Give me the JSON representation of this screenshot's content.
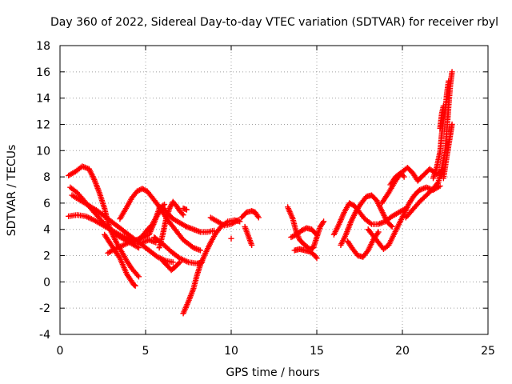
{
  "chart_data": {
    "type": "scatter",
    "title": "Day 360 of 2022, Sidereal Day-to-day VTEC variation (SDTVAR) for receiver rbyl",
    "xlabel": "GPS time / hours",
    "ylabel": "SDTVAR / TECUs",
    "xlim": [
      0,
      25
    ],
    "ylim": [
      -4,
      18
    ],
    "xticks": [
      "0",
      "5",
      "10",
      "15",
      "20",
      "25"
    ],
    "yticks": [
      "-4",
      "-2",
      "0",
      "2",
      "4",
      "6",
      "8",
      "10",
      "12",
      "14",
      "16",
      "18"
    ],
    "grid": true,
    "marker": "+",
    "color": "#ff0000",
    "traces": [
      [
        [
          0.5,
          8.1
        ],
        [
          0.9,
          8.4
        ],
        [
          1.3,
          8.8
        ],
        [
          1.7,
          8.6
        ],
        [
          2.0,
          7.8
        ],
        [
          2.3,
          6.8
        ],
        [
          2.6,
          5.6
        ],
        [
          2.8,
          4.5
        ],
        [
          3.0,
          3.8
        ],
        [
          3.3,
          3.0
        ],
        [
          3.6,
          2.3
        ],
        [
          3.9,
          1.6
        ],
        [
          4.2,
          1.0
        ],
        [
          4.6,
          0.4
        ]
      ],
      [
        [
          0.6,
          7.2
        ],
        [
          1.0,
          6.8
        ],
        [
          1.4,
          6.2
        ],
        [
          1.8,
          5.6
        ],
        [
          2.2,
          5.0
        ],
        [
          2.6,
          4.4
        ],
        [
          3.0,
          3.9
        ],
        [
          3.4,
          3.5
        ],
        [
          3.8,
          3.2
        ],
        [
          4.2,
          2.9
        ],
        [
          4.6,
          2.6
        ]
      ],
      [
        [
          0.5,
          5.0
        ],
        [
          1.0,
          5.1
        ],
        [
          1.5,
          5.0
        ],
        [
          2.0,
          4.7
        ],
        [
          2.4,
          4.4
        ],
        [
          2.8,
          4.1
        ],
        [
          3.2,
          3.8
        ],
        [
          3.6,
          3.5
        ],
        [
          4.0,
          3.3
        ],
        [
          4.4,
          3.1
        ],
        [
          4.8,
          3.0
        ],
        [
          5.2,
          3.2
        ],
        [
          5.6,
          3.0
        ]
      ],
      [
        [
          0.7,
          6.6
        ],
        [
          1.2,
          6.2
        ],
        [
          1.7,
          5.8
        ],
        [
          2.2,
          5.4
        ],
        [
          2.7,
          4.9
        ],
        [
          3.2,
          4.4
        ],
        [
          3.7,
          3.9
        ],
        [
          4.2,
          3.4
        ],
        [
          4.7,
          2.9
        ],
        [
          5.2,
          2.4
        ],
        [
          5.7,
          1.9
        ],
        [
          6.2,
          1.6
        ],
        [
          6.6,
          1.5
        ]
      ],
      [
        [
          2.6,
          3.6
        ],
        [
          2.9,
          3.0
        ],
        [
          3.2,
          2.4
        ],
        [
          3.5,
          1.8
        ],
        [
          3.7,
          1.2
        ],
        [
          3.9,
          0.6
        ],
        [
          4.1,
          0.2
        ],
        [
          4.3,
          -0.2
        ],
        [
          4.4,
          -0.3
        ]
      ],
      [
        [
          2.8,
          2.2
        ],
        [
          3.2,
          2.5
        ],
        [
          3.7,
          2.8
        ],
        [
          4.2,
          3.1
        ],
        [
          4.7,
          3.3
        ],
        [
          5.2,
          3.6
        ],
        [
          5.5,
          4.5
        ],
        [
          5.8,
          5.6
        ],
        [
          6.1,
          5.9
        ]
      ],
      [
        [
          3.5,
          4.8
        ],
        [
          3.9,
          5.7
        ],
        [
          4.2,
          6.4
        ],
        [
          4.5,
          6.9
        ],
        [
          4.8,
          7.1
        ],
        [
          5.1,
          6.9
        ],
        [
          5.4,
          6.4
        ],
        [
          5.7,
          5.9
        ],
        [
          6.0,
          5.3
        ],
        [
          6.3,
          4.7
        ],
        [
          6.6,
          4.2
        ],
        [
          6.9,
          3.7
        ],
        [
          7.2,
          3.2
        ],
        [
          7.5,
          2.9
        ],
        [
          7.8,
          2.6
        ],
        [
          8.2,
          2.4
        ]
      ],
      [
        [
          4.6,
          3.2
        ],
        [
          5.0,
          3.8
        ],
        [
          5.4,
          4.4
        ],
        [
          5.7,
          5.1
        ],
        [
          6.0,
          5.7
        ],
        [
          6.3,
          5.2
        ],
        [
          6.6,
          4.8
        ],
        [
          7.0,
          4.5
        ],
        [
          7.4,
          4.2
        ],
        [
          7.8,
          4.0
        ],
        [
          8.2,
          3.8
        ],
        [
          8.6,
          3.8
        ],
        [
          9.0,
          3.9
        ]
      ],
      [
        [
          5.8,
          2.6
        ],
        [
          6.0,
          3.6
        ],
        [
          6.2,
          4.8
        ],
        [
          6.4,
          5.6
        ],
        [
          6.6,
          6.1
        ],
        [
          6.8,
          5.8
        ],
        [
          7.0,
          5.4
        ],
        [
          7.2,
          5.1
        ]
      ],
      [
        [
          5.5,
          3.4
        ],
        [
          6.0,
          2.9
        ],
        [
          6.5,
          2.3
        ],
        [
          7.0,
          1.8
        ],
        [
          7.5,
          1.5
        ],
        [
          8.0,
          1.4
        ],
        [
          8.3,
          1.5
        ]
      ],
      [
        [
          6.0,
          1.6
        ],
        [
          6.3,
          1.2
        ],
        [
          6.5,
          0.9
        ],
        [
          6.7,
          1.1
        ],
        [
          7.0,
          1.5
        ]
      ],
      [
        [
          7.2,
          5.6
        ],
        [
          7.4,
          5.5
        ]
      ],
      [
        [
          7.2,
          -2.4
        ],
        [
          7.5,
          -1.5
        ],
        [
          7.8,
          -0.5
        ],
        [
          8.0,
          0.5
        ],
        [
          8.2,
          1.3
        ],
        [
          8.5,
          2.2
        ],
        [
          8.8,
          3.0
        ],
        [
          9.1,
          3.7
        ],
        [
          9.4,
          4.2
        ],
        [
          9.8,
          4.6
        ],
        [
          10.2,
          4.7
        ],
        [
          10.5,
          4.6
        ]
      ],
      [
        [
          8.8,
          4.9
        ],
        [
          9.2,
          4.6
        ],
        [
          9.6,
          4.3
        ],
        [
          10.0,
          4.4
        ],
        [
          10.4,
          4.7
        ]
      ],
      [
        [
          10.0,
          3.3
        ]
      ],
      [
        [
          10.6,
          4.9
        ],
        [
          10.9,
          5.3
        ],
        [
          11.2,
          5.4
        ],
        [
          11.4,
          5.3
        ],
        [
          11.6,
          4.9
        ]
      ],
      [
        [
          10.8,
          4.2
        ],
        [
          11.0,
          3.5
        ],
        [
          11.2,
          2.8
        ]
      ],
      [
        [
          13.3,
          5.7
        ],
        [
          13.6,
          4.8
        ],
        [
          13.8,
          3.8
        ],
        [
          14.0,
          3.2
        ],
        [
          14.3,
          2.8
        ],
        [
          14.6,
          2.5
        ],
        [
          14.8,
          2.6
        ],
        [
          15.0,
          3.4
        ],
        [
          15.2,
          4.2
        ],
        [
          15.4,
          4.6
        ]
      ],
      [
        [
          13.5,
          3.4
        ],
        [
          13.8,
          3.6
        ],
        [
          14.1,
          3.9
        ],
        [
          14.4,
          4.1
        ],
        [
          14.7,
          4.0
        ],
        [
          15.0,
          3.6
        ]
      ],
      [
        [
          13.7,
          2.4
        ],
        [
          14.0,
          2.5
        ],
        [
          14.3,
          2.4
        ],
        [
          14.6,
          2.3
        ],
        [
          14.9,
          2.0
        ],
        [
          15.0,
          1.8
        ]
      ],
      [
        [
          16.0,
          3.6
        ],
        [
          16.3,
          4.4
        ],
        [
          16.6,
          5.3
        ],
        [
          16.9,
          6.0
        ],
        [
          17.2,
          5.8
        ],
        [
          17.5,
          5.3
        ],
        [
          17.8,
          4.8
        ],
        [
          18.2,
          4.4
        ],
        [
          18.6,
          4.4
        ],
        [
          19.0,
          4.6
        ],
        [
          19.4,
          5.0
        ],
        [
          19.8,
          5.3
        ],
        [
          20.2,
          5.6
        ]
      ],
      [
        [
          16.4,
          2.8
        ],
        [
          16.7,
          3.6
        ],
        [
          17.0,
          4.6
        ],
        [
          17.3,
          5.4
        ],
        [
          17.6,
          6.0
        ],
        [
          17.9,
          6.5
        ],
        [
          18.2,
          6.6
        ],
        [
          18.5,
          6.2
        ],
        [
          18.8,
          5.4
        ],
        [
          19.1,
          4.6
        ],
        [
          19.4,
          4.2
        ]
      ],
      [
        [
          16.8,
          3.1
        ],
        [
          17.1,
          2.5
        ],
        [
          17.4,
          2.0
        ],
        [
          17.7,
          1.9
        ],
        [
          18.0,
          2.4
        ],
        [
          18.3,
          3.2
        ],
        [
          18.6,
          3.8
        ]
      ],
      [
        [
          18.0,
          4.0
        ],
        [
          18.3,
          3.5
        ],
        [
          18.6,
          3.0
        ],
        [
          18.9,
          2.5
        ],
        [
          19.2,
          2.8
        ],
        [
          19.5,
          3.6
        ],
        [
          19.8,
          4.4
        ],
        [
          20.1,
          5.2
        ],
        [
          20.4,
          6.0
        ],
        [
          20.7,
          6.6
        ],
        [
          21.0,
          7.0
        ],
        [
          21.4,
          7.2
        ],
        [
          21.8,
          7.0
        ],
        [
          22.2,
          7.3
        ]
      ],
      [
        [
          18.8,
          6.0
        ],
        [
          19.2,
          6.8
        ],
        [
          19.6,
          7.7
        ],
        [
          20.0,
          8.4
        ],
        [
          20.3,
          8.7
        ],
        [
          20.6,
          8.3
        ],
        [
          20.9,
          7.7
        ],
        [
          21.2,
          8.1
        ],
        [
          21.6,
          8.6
        ],
        [
          22.0,
          8.2
        ],
        [
          22.3,
          8.5
        ]
      ],
      [
        [
          19.3,
          7.4
        ],
        [
          19.6,
          8.0
        ],
        [
          19.9,
          8.3
        ],
        [
          20.1,
          8.0
        ]
      ],
      [
        [
          20.2,
          4.9
        ],
        [
          20.6,
          5.5
        ],
        [
          21.0,
          6.1
        ],
        [
          21.4,
          6.6
        ],
        [
          21.8,
          7.1
        ],
        [
          22.1,
          7.6
        ],
        [
          22.3,
          8.6
        ],
        [
          22.5,
          10.0
        ],
        [
          22.6,
          11.6
        ],
        [
          22.7,
          13.4
        ],
        [
          22.8,
          15.0
        ],
        [
          22.9,
          16.0
        ]
      ],
      [
        [
          21.8,
          7.9
        ],
        [
          22.0,
          8.7
        ],
        [
          22.2,
          9.9
        ],
        [
          22.3,
          11.3
        ],
        [
          22.4,
          12.4
        ],
        [
          22.5,
          13.0
        ],
        [
          22.6,
          14.4
        ],
        [
          22.7,
          15.3
        ]
      ],
      [
        [
          22.4,
          7.9
        ],
        [
          22.6,
          9.6
        ],
        [
          22.8,
          11.2
        ],
        [
          22.9,
          12.0
        ]
      ],
      [
        [
          22.2,
          11.7
        ],
        [
          22.3,
          12.8
        ],
        [
          22.4,
          13.4
        ]
      ]
    ]
  }
}
